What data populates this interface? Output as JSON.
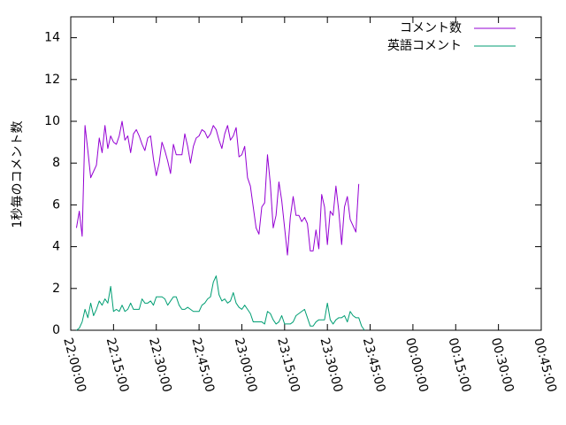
{
  "chart_data": {
    "type": "line",
    "title": "",
    "xlabel": "",
    "ylabel": "1秒毎のコメント数",
    "xlim": [
      "22:00:00",
      "00:45:00"
    ],
    "ylim": [
      0,
      15
    ],
    "yticks": [
      0,
      2,
      4,
      6,
      8,
      10,
      12,
      14
    ],
    "xticks": [
      "22:00:00",
      "22:15:00",
      "22:30:00",
      "22:45:00",
      "23:00:00",
      "23:15:00",
      "23:30:00",
      "23:45:00",
      "00:00:00",
      "00:15:00",
      "00:30:00",
      "00:45:00"
    ],
    "grid": false,
    "legend_position": "top-right",
    "x_start": "22:02:00",
    "x_step": "1 minute",
    "series": [
      {
        "name": "コメント数",
        "color": "#9400d3",
        "values": [
          4.9,
          5.7,
          4.5,
          9.8,
          8.6,
          7.3,
          7.6,
          7.9,
          9.2,
          8.5,
          9.8,
          8.7,
          9.3,
          9.0,
          8.9,
          9.3,
          10.0,
          9.1,
          9.3,
          8.5,
          9.4,
          9.6,
          9.3,
          8.9,
          8.6,
          9.2,
          9.3,
          8.2,
          7.4,
          8.0,
          9.0,
          8.6,
          8.1,
          7.5,
          8.9,
          8.4,
          8.4,
          8.4,
          9.4,
          8.8,
          8.0,
          8.8,
          9.2,
          9.3,
          9.6,
          9.5,
          9.2,
          9.4,
          9.8,
          9.6,
          9.1,
          8.7,
          9.4,
          9.8,
          9.1,
          9.3,
          9.7,
          8.3,
          8.4,
          8.8,
          7.3,
          6.9,
          5.9,
          4.9,
          4.6,
          5.9,
          6.1,
          8.4,
          7.0,
          4.9,
          5.5,
          7.1,
          6.2,
          4.9,
          3.6,
          5.4,
          6.4,
          5.5,
          5.5,
          5.2,
          5.4,
          5.1,
          3.8,
          3.8,
          4.8,
          3.9,
          6.5,
          5.9,
          4.1,
          5.7,
          5.5,
          6.9,
          5.7,
          4.1,
          5.9,
          6.4,
          5.3,
          5.0,
          4.7,
          7.0
        ]
      },
      {
        "name": "英語コメント",
        "color": "#009e73",
        "values": [
          0.0,
          0.1,
          0.4,
          1.0,
          0.6,
          1.3,
          0.7,
          1.0,
          1.4,
          1.2,
          1.5,
          1.3,
          2.1,
          0.9,
          1.0,
          0.9,
          1.2,
          0.9,
          1.0,
          1.3,
          1.0,
          1.0,
          1.0,
          1.5,
          1.3,
          1.3,
          1.4,
          1.2,
          1.6,
          1.6,
          1.6,
          1.5,
          1.2,
          1.4,
          1.6,
          1.6,
          1.2,
          1.0,
          1.0,
          1.1,
          1.0,
          0.9,
          0.9,
          0.9,
          1.2,
          1.3,
          1.5,
          1.6,
          2.3,
          2.6,
          1.7,
          1.4,
          1.5,
          1.3,
          1.4,
          1.8,
          1.3,
          1.1,
          1.0,
          1.2,
          1.0,
          0.8,
          0.4,
          0.4,
          0.4,
          0.4,
          0.3,
          0.9,
          0.8,
          0.5,
          0.3,
          0.4,
          0.7,
          0.3,
          0.3,
          0.3,
          0.4,
          0.7,
          0.8,
          0.9,
          1.0,
          0.6,
          0.2,
          0.2,
          0.4,
          0.5,
          0.5,
          0.5,
          1.3,
          0.5,
          0.3,
          0.5,
          0.6,
          0.6,
          0.7,
          0.4,
          0.9,
          0.7,
          0.6,
          0.6,
          0.2,
          0.0
        ]
      }
    ]
  }
}
